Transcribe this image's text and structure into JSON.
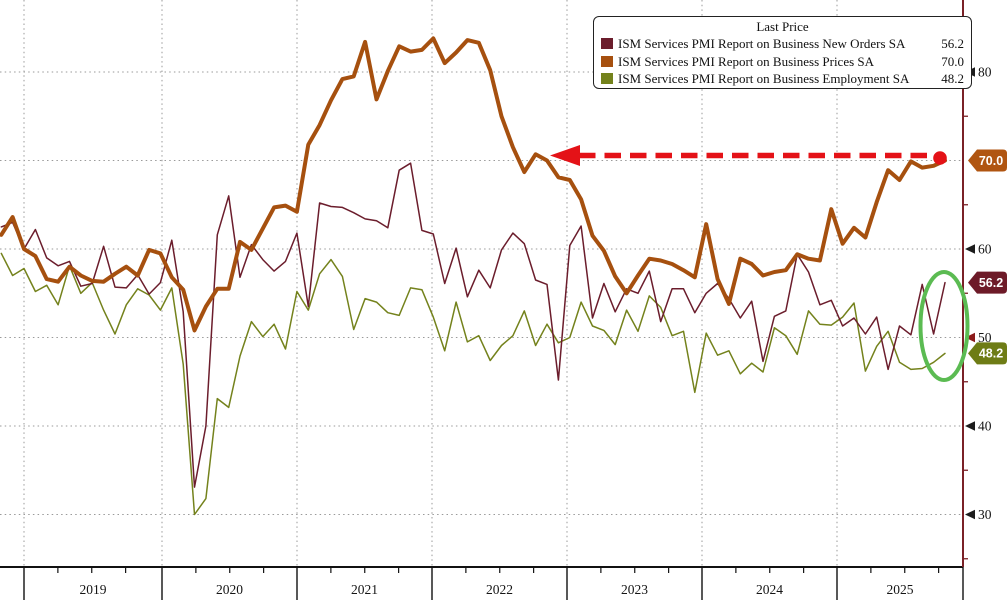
{
  "legend": {
    "title": "Last Price",
    "items": [
      {
        "label": "ISM Services PMI Report on Business New Orders SA",
        "value": "56.2",
        "color": "#6b1d2c"
      },
      {
        "label": "ISM Services PMI Report on Business Prices SA",
        "value": "70.0",
        "color": "#a6500f"
      },
      {
        "label": "ISM Services PMI Report on Business Employment SA",
        "value": "48.2",
        "color": "#74821c"
      }
    ]
  },
  "y_axis": {
    "labels": [
      {
        "text": "80",
        "v": 80,
        "arrow_color": "#1c1c1c"
      },
      {
        "text": "60",
        "v": 60,
        "arrow_color": "#1c1c1c"
      },
      {
        "text": "50",
        "v": 50,
        "arrow_color": "#8c1a1a"
      },
      {
        "text": "40",
        "v": 40,
        "arrow_color": "#1c1c1c"
      },
      {
        "text": "30",
        "v": 30,
        "arrow_color": "#1c1c1c"
      }
    ],
    "badges": [
      {
        "text": "70.0",
        "v": 70.0,
        "color": "#b05511"
      },
      {
        "text": "56.2",
        "v": 56.2,
        "color": "#6d1a28"
      },
      {
        "text": "48.2",
        "v": 48.2,
        "color": "#6e7c15"
      }
    ],
    "axis_color": "#7a2127"
  },
  "annotations": {
    "arrow": {
      "level": 70.0,
      "color": "#e41217",
      "style": "dashed",
      "direction": "left",
      "from": "2025-10",
      "to": "2022-11",
      "endpoint_dot": true
    },
    "ellipse": {
      "color": "#5bbb52",
      "highlights": "latest New Orders and Employment prints"
    }
  },
  "chart_data": {
    "type": "line",
    "title": "",
    "frequency": "monthly",
    "x_start": "2018-11",
    "x_end": "2025-10",
    "x_year_labels": [
      "2019",
      "2020",
      "2021",
      "2022",
      "2023",
      "2024",
      "2025"
    ],
    "ylim": [
      24,
      88
    ],
    "y_major_ticks": [
      80,
      70,
      60,
      50,
      40,
      30
    ],
    "y_minor_ticks": [
      85,
      75,
      65,
      55,
      45,
      35,
      25
    ],
    "grid": "dotted",
    "legend_position": "top-right",
    "series": [
      {
        "name": "ISM Services PMI Report on Business New Orders SA",
        "last_price": 56.2,
        "color": "#6b1d2c",
        "width": 1.5,
        "values": [
          62.5,
          63.0,
          60.0,
          62.2,
          59.0,
          58.1,
          58.6,
          55.8,
          56.1,
          60.3,
          55.7,
          55.6,
          57.1,
          54.9,
          56.2,
          61.0,
          52.9,
          33.1,
          40.0,
          61.6,
          66.0,
          56.8,
          60.5,
          58.8,
          57.5,
          58.6,
          61.8,
          53.5,
          65.2,
          64.8,
          64.7,
          64.1,
          63.4,
          63.2,
          62.4,
          68.9,
          69.7,
          62.1,
          61.7,
          56.1,
          60.1,
          54.6,
          57.6,
          55.6,
          59.9,
          61.8,
          60.6,
          56.5,
          56.0,
          45.2,
          60.4,
          62.6,
          52.2,
          56.1,
          52.9,
          55.5,
          55.0,
          57.5,
          51.8,
          55.5,
          55.5,
          52.8,
          55.0,
          56.1,
          54.4,
          52.2,
          54.1,
          47.3,
          52.4,
          53.0,
          59.4,
          57.4,
          53.7,
          54.2,
          51.3,
          52.2,
          50.4,
          52.3,
          46.4,
          51.3,
          50.3,
          56.0,
          50.4,
          56.2
        ]
      },
      {
        "name": "ISM Services PMI Report on Business Prices SA",
        "last_price": 70.0,
        "color": "#a6500f",
        "width": 4,
        "values": [
          61.6,
          63.6,
          60.0,
          59.2,
          56.6,
          56.3,
          58.0,
          57.0,
          56.4,
          56.3,
          57.2,
          58.0,
          57.0,
          59.9,
          59.5,
          56.8,
          55.4,
          50.8,
          53.5,
          55.5,
          55.5,
          60.8,
          59.9,
          62.3,
          64.7,
          64.9,
          64.2,
          71.8,
          74.0,
          76.8,
          79.2,
          79.5,
          83.4,
          76.9,
          80.1,
          82.9,
          82.3,
          82.5,
          83.8,
          81.0,
          82.2,
          83.6,
          83.3,
          80.2,
          75.0,
          71.5,
          68.7,
          70.7,
          70.0,
          68.1,
          67.8,
          65.6,
          61.5,
          59.8,
          56.9,
          55.0,
          57.0,
          58.9,
          58.7,
          58.3,
          57.6,
          56.8,
          62.8,
          56.6,
          53.8,
          58.9,
          58.3,
          57.0,
          57.4,
          57.6,
          59.4,
          58.9,
          58.7,
          64.5,
          60.6,
          62.4,
          61.3,
          65.3,
          68.9,
          67.8,
          69.9,
          69.2,
          69.4,
          70.0
        ]
      },
      {
        "name": "ISM Services PMI Report on Business Employment SA",
        "last_price": 48.2,
        "color": "#74821c",
        "width": 1.5,
        "values": [
          59.5,
          57.0,
          57.8,
          55.2,
          55.9,
          53.7,
          58.1,
          55.0,
          56.2,
          53.1,
          50.4,
          53.7,
          55.5,
          54.8,
          53.1,
          55.6,
          47.0,
          30.0,
          31.8,
          43.1,
          42.1,
          47.9,
          51.8,
          50.1,
          51.5,
          48.7,
          55.2,
          53.1,
          57.2,
          58.8,
          56.9,
          50.9,
          54.4,
          54.0,
          52.8,
          52.5,
          55.6,
          55.4,
          52.3,
          48.5,
          54.0,
          49.5,
          50.2,
          47.4,
          49.1,
          50.2,
          53.0,
          49.1,
          51.5,
          49.4,
          50.0,
          54.0,
          51.3,
          50.8,
          49.2,
          53.1,
          50.7,
          54.7,
          53.4,
          50.2,
          50.7,
          43.8,
          50.5,
          48.0,
          48.5,
          45.9,
          47.1,
          46.1,
          51.1,
          50.2,
          48.1,
          53.0,
          51.5,
          51.4,
          52.3,
          53.9,
          46.2,
          49.0,
          50.7,
          47.2,
          46.4,
          46.5,
          47.2,
          48.2
        ]
      }
    ]
  }
}
